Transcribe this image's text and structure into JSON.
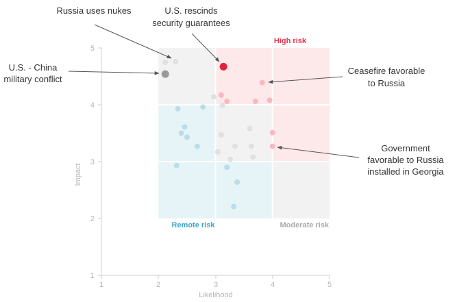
{
  "chart_data": {
    "type": "scatter",
    "title": "",
    "xlabel": "Likelihood",
    "ylabel": "Impact",
    "xlim": [
      1,
      5
    ],
    "ylim": [
      1,
      5
    ],
    "x_ticks": [
      "1",
      "2",
      "3",
      "4",
      "5"
    ],
    "y_ticks": [
      "1",
      "2",
      "3",
      "4",
      "5"
    ],
    "grid": false,
    "zones": [
      {
        "name": "High risk",
        "color": "#e8334a"
      },
      {
        "name": "Remote risk",
        "color": "#3aa6c7"
      },
      {
        "name": "Moderate risk",
        "color": "#aaaaaa"
      }
    ],
    "points": [
      {
        "x": 2.12,
        "y": 4.75,
        "group": "neutral"
      },
      {
        "x": 2.3,
        "y": 4.76,
        "group": "neutral"
      },
      {
        "x": 3.14,
        "y": 4.67,
        "group": "highlight-red"
      },
      {
        "x": 2.12,
        "y": 4.54,
        "group": "highlight-gray"
      },
      {
        "x": 3.82,
        "y": 4.39,
        "group": "high"
      },
      {
        "x": 2.97,
        "y": 4.14,
        "group": "neutral"
      },
      {
        "x": 3.1,
        "y": 4.17,
        "group": "high"
      },
      {
        "x": 3.2,
        "y": 4.06,
        "group": "high"
      },
      {
        "x": 3.12,
        "y": 3.99,
        "group": "neutral"
      },
      {
        "x": 3.7,
        "y": 4.06,
        "group": "high"
      },
      {
        "x": 3.95,
        "y": 4.08,
        "group": "high"
      },
      {
        "x": 2.34,
        "y": 3.93,
        "group": "remote"
      },
      {
        "x": 2.78,
        "y": 3.96,
        "group": "remote"
      },
      {
        "x": 2.46,
        "y": 3.61,
        "group": "remote"
      },
      {
        "x": 2.4,
        "y": 3.5,
        "group": "remote"
      },
      {
        "x": 2.5,
        "y": 3.43,
        "group": "remote"
      },
      {
        "x": 2.68,
        "y": 3.27,
        "group": "remote"
      },
      {
        "x": 2.32,
        "y": 2.93,
        "group": "remote"
      },
      {
        "x": 3.2,
        "y": 2.9,
        "group": "remote"
      },
      {
        "x": 3.38,
        "y": 2.64,
        "group": "remote"
      },
      {
        "x": 3.32,
        "y": 2.21,
        "group": "remote"
      },
      {
        "x": 3.1,
        "y": 3.47,
        "group": "neutral"
      },
      {
        "x": 3.04,
        "y": 3.17,
        "group": "neutral"
      },
      {
        "x": 3.34,
        "y": 3.27,
        "group": "neutral"
      },
      {
        "x": 3.26,
        "y": 3.04,
        "group": "neutral"
      },
      {
        "x": 3.6,
        "y": 3.58,
        "group": "neutral"
      },
      {
        "x": 3.63,
        "y": 3.27,
        "group": "neutral"
      },
      {
        "x": 3.66,
        "y": 3.08,
        "group": "neutral"
      },
      {
        "x": 4.0,
        "y": 3.51,
        "group": "high"
      },
      {
        "x": 4.0,
        "y": 3.27,
        "group": "high"
      }
    ],
    "annotations": [
      {
        "lines": [
          "Russia uses nukes"
        ],
        "target": {
          "x": 2.3,
          "y": 4.76
        }
      },
      {
        "lines": [
          "U.S. rescinds",
          "security guarantees"
        ],
        "target": {
          "x": 3.14,
          "y": 4.67
        }
      },
      {
        "lines": [
          "U.S. - China",
          "military conflict"
        ],
        "target": {
          "x": 2.12,
          "y": 4.54
        }
      },
      {
        "lines": [
          "Ceasefire favorable",
          "to Russia"
        ],
        "target": {
          "x": 3.82,
          "y": 4.39
        }
      },
      {
        "lines": [
          "Government",
          "favorable to Russia",
          "installed in Georgia"
        ],
        "target": {
          "x": 4.0,
          "y": 3.27
        }
      }
    ],
    "colors": {
      "background_neutral": "#f2f2f2",
      "background_high": "#fde8ea",
      "background_remote": "#e7f4f7",
      "point_neutral": "#e0e0e0",
      "point_high": "#f7b9c1",
      "point_remote": "#b9deea",
      "point_highlight_red": "#e0233c",
      "point_highlight_gray": "#9a9a9a",
      "arrow": "#555555"
    }
  }
}
